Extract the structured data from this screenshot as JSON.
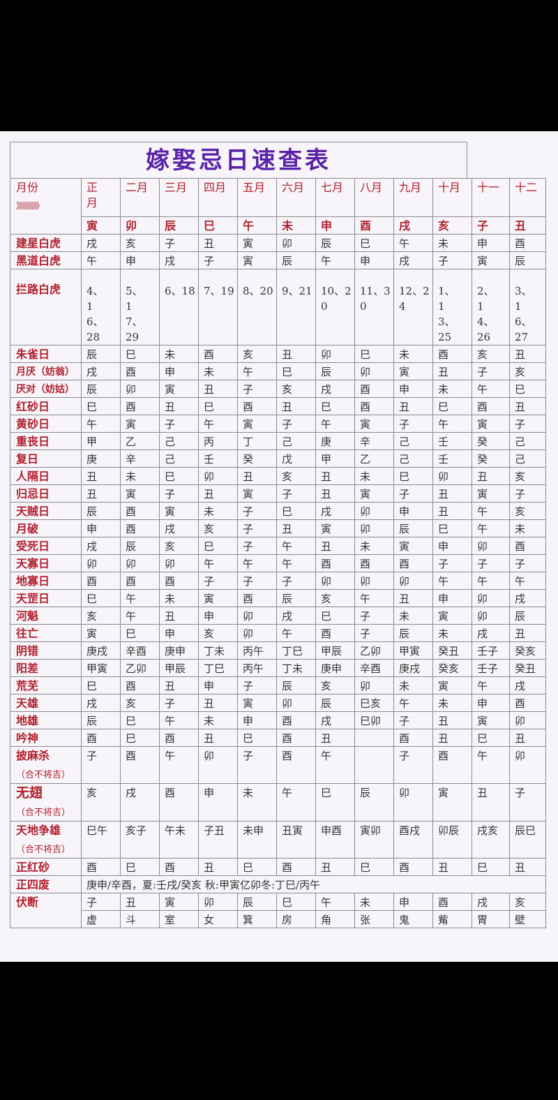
{
  "title": "嫁娶忌日速查表",
  "header": {
    "label": "月份",
    "arrows": "》》》》》》》》",
    "months": [
      "正月",
      "二月",
      "三月",
      "四月",
      "五月",
      "六月",
      "七月",
      "八月",
      "九月",
      "十月",
      "十一",
      "十二"
    ],
    "branches": [
      "寅",
      "卯",
      "辰",
      "巳",
      "午",
      "未",
      "申",
      "酉",
      "戌",
      "亥",
      "子",
      "丑"
    ]
  },
  "rows": [
    {
      "label": "建星白虎",
      "values": [
        "戌",
        "亥",
        "子",
        "丑",
        "寅",
        "卯",
        "辰",
        "巳",
        "午",
        "未",
        "申",
        "酉"
      ]
    },
    {
      "label": "黑道白虎",
      "values": [
        "午",
        "申",
        "戌",
        "子",
        "寅",
        "辰",
        "午",
        "申",
        "戌",
        "子",
        "寅",
        "辰"
      ]
    },
    {
      "label": "拦路白虎",
      "values": [
        "4、16、28",
        "5、17、29",
        "6、18",
        "7、19",
        "8、20",
        "9、21",
        "10、20",
        "11、30",
        "12、24",
        "1、13、25",
        "2、14、26",
        "3、16、27"
      ]
    },
    {
      "label": "朱雀日",
      "values": [
        "辰",
        "巳",
        "未",
        "酉",
        "亥",
        "丑",
        "卯",
        "巳",
        "未",
        "酉",
        "亥",
        "丑"
      ]
    },
    {
      "label": "月厌（妨翁）",
      "values": [
        "戌",
        "酉",
        "申",
        "未",
        "午",
        "巳",
        "辰",
        "卯",
        "寅",
        "丑",
        "子",
        "亥"
      ]
    },
    {
      "label": "厌对（妨姑）",
      "values": [
        "辰",
        "卯",
        "寅",
        "丑",
        "子",
        "亥",
        "戌",
        "酉",
        "申",
        "未",
        "午",
        "巳"
      ]
    },
    {
      "label": "红砂日",
      "values": [
        "巳",
        "酉",
        "丑",
        "巳",
        "酉",
        "丑",
        "巳",
        "酉",
        "丑",
        "巳",
        "酉",
        "丑"
      ]
    },
    {
      "label": "黄砂日",
      "values": [
        "午",
        "寅",
        "子",
        "午",
        "寅",
        "子",
        "午",
        "寅",
        "子",
        "午",
        "寅",
        "子"
      ]
    },
    {
      "label": "重丧日",
      "values": [
        "甲",
        "乙",
        "己",
        "丙",
        "丁",
        "己",
        "庚",
        "辛",
        "己",
        "壬",
        "癸",
        "己"
      ]
    },
    {
      "label": "复日",
      "values": [
        "庚",
        "辛",
        "己",
        "壬",
        "癸",
        "戊",
        "甲",
        "乙",
        "己",
        "壬",
        "癸",
        "己"
      ]
    },
    {
      "label": "人隔日",
      "values": [
        "丑",
        "未",
        "巳",
        "卯",
        "丑",
        "亥",
        "丑",
        "未",
        "巳",
        "卯",
        "丑",
        "亥"
      ]
    },
    {
      "label": "归忌日",
      "values": [
        "丑",
        "寅",
        "子",
        "丑",
        "寅",
        "子",
        "丑",
        "寅",
        "子",
        "丑",
        "寅",
        "子"
      ]
    },
    {
      "label": "天贼日",
      "values": [
        "辰",
        "酉",
        "寅",
        "未",
        "子",
        "巳",
        "戌",
        "卯",
        "申",
        "丑",
        "午",
        "亥"
      ]
    },
    {
      "label": "月破",
      "values": [
        "申",
        "酉",
        "戌",
        "亥",
        "子",
        "丑",
        "寅",
        "卯",
        "辰",
        "巳",
        "午",
        "未"
      ]
    },
    {
      "label": "受死日",
      "values": [
        "戌",
        "辰",
        "亥",
        "巳",
        "子",
        "午",
        "丑",
        "未",
        "寅",
        "申",
        "卯",
        "酉"
      ]
    },
    {
      "label": "天寡日",
      "values": [
        "卯",
        "卯",
        "卯",
        "午",
        "午",
        "午",
        "酉",
        "酉",
        "酉",
        "子",
        "子",
        "子"
      ]
    },
    {
      "label": "地寡日",
      "values": [
        "酉",
        "酉",
        "酉",
        "子",
        "子",
        "子",
        "卯",
        "卯",
        "卯",
        "午",
        "午",
        "午"
      ]
    },
    {
      "label": "天罡日",
      "values": [
        "巳",
        "午",
        "未",
        "寅",
        "酉",
        "辰",
        "亥",
        "午",
        "丑",
        "申",
        "卯",
        "戌"
      ]
    },
    {
      "label": "河魁",
      "values": [
        "亥",
        "午",
        "丑",
        "申",
        "卯",
        "戌",
        "巳",
        "子",
        "未",
        "寅",
        "卯",
        "辰"
      ]
    },
    {
      "label": "往亡",
      "values": [
        "寅",
        "巳",
        "申",
        "亥",
        "卯",
        "午",
        "酉",
        "子",
        "辰",
        "未",
        "戌",
        "丑"
      ]
    },
    {
      "label": "阴错",
      "values": [
        "庚戌",
        "辛酉",
        "庚申",
        "丁未",
        "丙午",
        "丁巳",
        "甲辰",
        "乙卯",
        "甲寅",
        "癸丑",
        "壬子",
        "癸亥"
      ]
    },
    {
      "label": "阳差",
      "values": [
        "甲寅",
        "乙卯",
        "甲辰",
        "丁巳",
        "丙午",
        "丁未",
        "庚申",
        "辛酉",
        "庚戌",
        "癸亥",
        "壬子",
        "癸丑"
      ]
    },
    {
      "label": "荒芜",
      "values": [
        "巳",
        "酉",
        "丑",
        "申",
        "子",
        "辰",
        "亥",
        "卯",
        "未",
        "寅",
        "午",
        "戌"
      ]
    },
    {
      "label": "天雄",
      "values": [
        "戌",
        "亥",
        "子",
        "丑",
        "寅",
        "卯",
        "辰",
        "巳亥",
        "午",
        "未",
        "申",
        "酉"
      ]
    },
    {
      "label": "地雄",
      "values": [
        "辰",
        "巳",
        "午",
        "未",
        "申",
        "酉",
        "戌",
        "巳卯",
        "子",
        "丑",
        "寅",
        "卯"
      ]
    },
    {
      "label": "吟神",
      "values": [
        "酉",
        "巳",
        "酉",
        "丑",
        "巳",
        "酉",
        "丑",
        "",
        "酉",
        "丑",
        "巳",
        "丑"
      ]
    },
    {
      "label": "披麻杀",
      "sub": "（合不将吉）",
      "values": [
        "子",
        "酉",
        "午",
        "卯",
        "子",
        "酉",
        "午",
        "",
        "子",
        "酉",
        "午",
        "卯"
      ]
    },
    {
      "label": "无翅",
      "sub": "（合不将吉）",
      "values": [
        "亥",
        "戌",
        "酉",
        "申",
        "未",
        "午",
        "巳",
        "辰",
        "卯",
        "寅",
        "丑",
        "子"
      ]
    },
    {
      "label": "天地争雄",
      "sub": "（合不将吉）",
      "values": [
        "巳午",
        "亥子",
        "午未",
        "子丑",
        "未申",
        "丑寅",
        "申酉",
        "寅卯",
        "酉戌",
        "卯辰",
        "戌亥",
        "辰巳"
      ]
    },
    {
      "label": "正红砂",
      "values": [
        "酉",
        "巳",
        "酉",
        "丑",
        "巳",
        "酉",
        "丑",
        "巳",
        "酉",
        "丑",
        "巳",
        "丑"
      ]
    }
  ],
  "zhengsifei": {
    "label": "正四废",
    "text": "庚申/辛酉，夏:壬戌/癸亥 秋:甲寅亿卯冬:丁巳/丙午"
  },
  "fuduan": {
    "label": "伏断",
    "branches": [
      "子",
      "丑",
      "寅",
      "卯",
      "辰",
      "巳",
      "午",
      "未",
      "申",
      "酉",
      "戌",
      "亥"
    ],
    "mansions": [
      "虚",
      "斗",
      "室",
      "女",
      "箕",
      "房",
      "角",
      "张",
      "鬼",
      "觜",
      "胃",
      "壁"
    ]
  }
}
